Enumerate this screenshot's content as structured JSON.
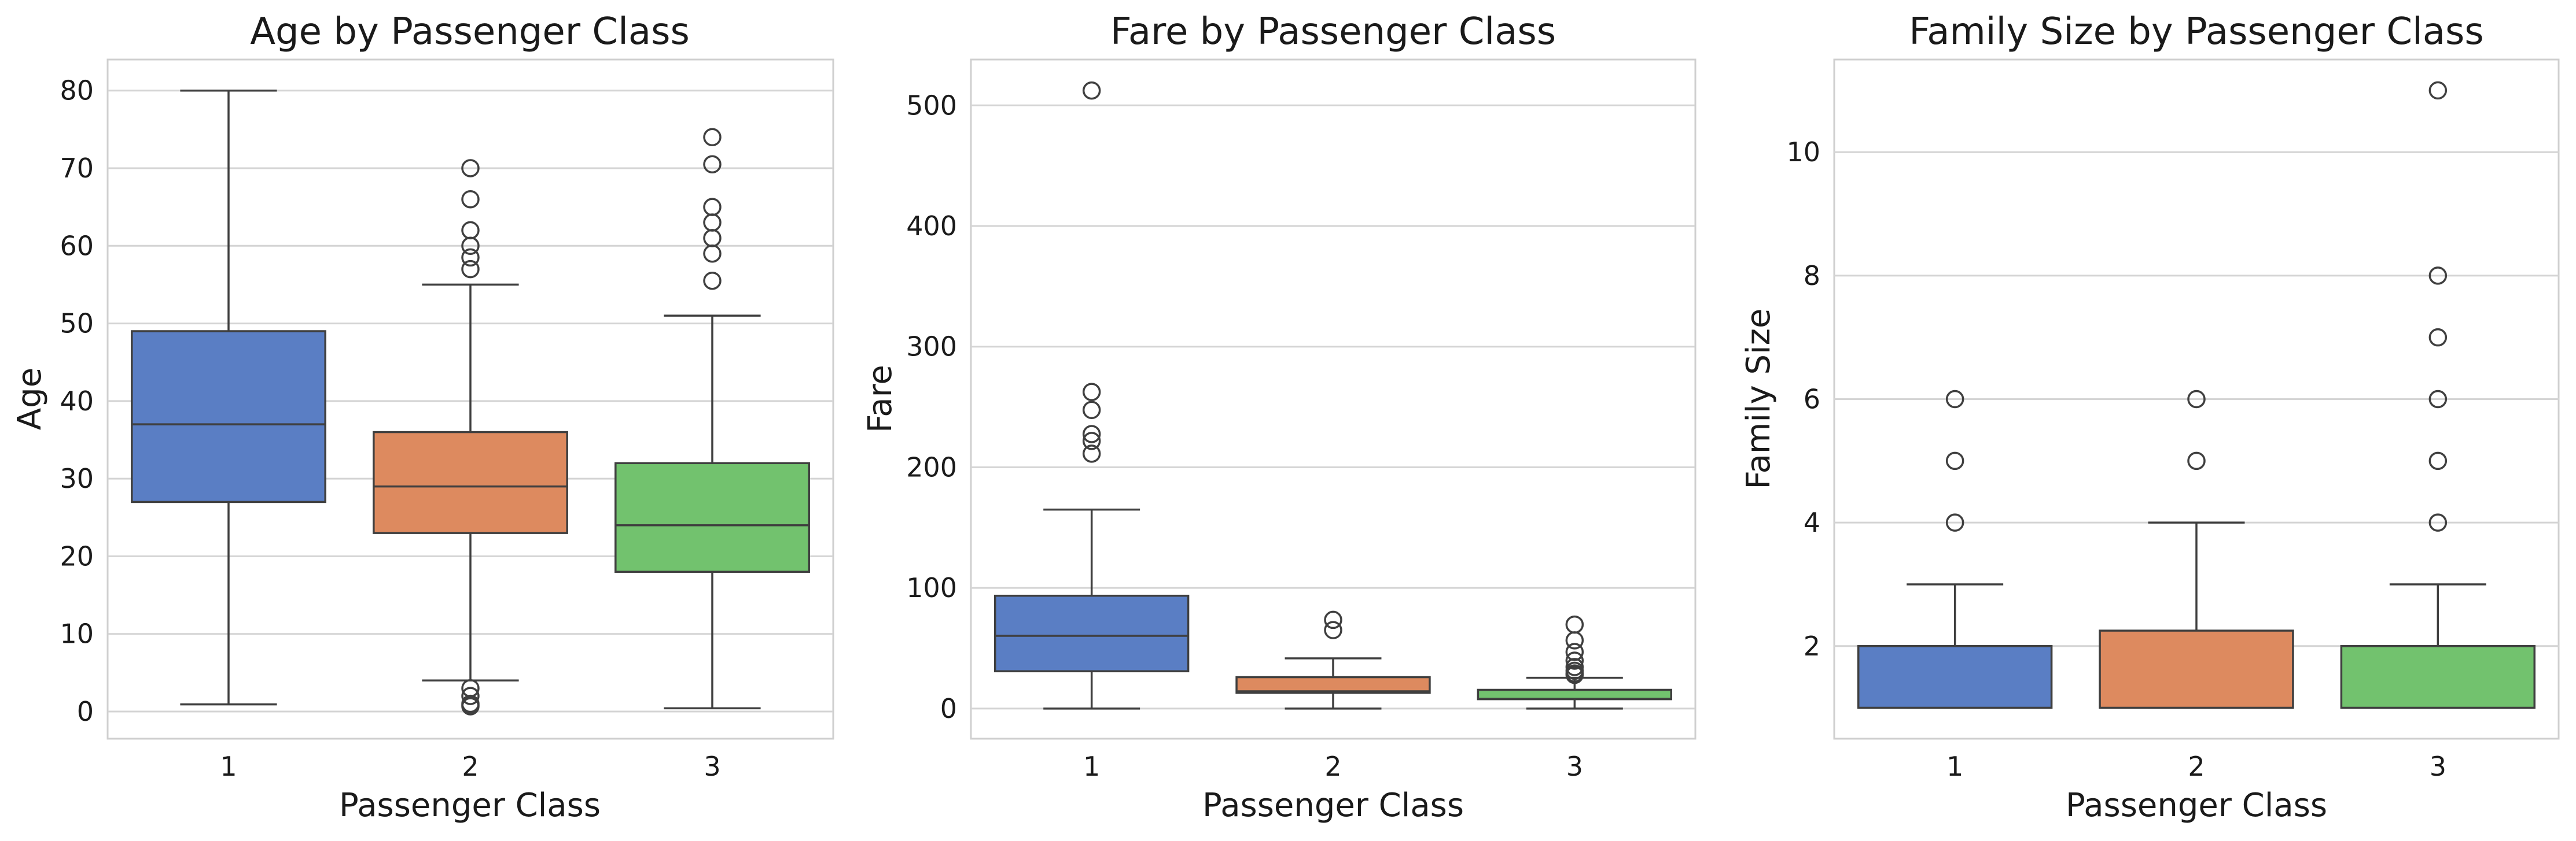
{
  "colors": {
    "class_1": "#5a7ec4",
    "class_2": "#dd8a5f",
    "class_3": "#72c26e"
  },
  "chart_data": [
    {
      "type": "box",
      "title": "Age by Passenger Class",
      "xlabel": "Passenger Class",
      "ylabel": "Age",
      "categories": [
        "1",
        "2",
        "3"
      ],
      "ylim": [
        -3.5,
        84
      ],
      "yticks": [
        0,
        10,
        20,
        30,
        40,
        50,
        60,
        70,
        80
      ],
      "grid": true,
      "boxes": [
        {
          "category": "1",
          "whislo": 0.92,
          "q1": 27,
          "med": 37,
          "q3": 49,
          "whishi": 80,
          "fliers": []
        },
        {
          "category": "2",
          "whislo": 4,
          "q1": 23,
          "med": 29,
          "q3": 36,
          "whishi": 55,
          "fliers": [
            0.67,
            0.83,
            1,
            2,
            3,
            57,
            58.5,
            60,
            62,
            66,
            70
          ]
        },
        {
          "category": "3",
          "whislo": 0.42,
          "q1": 18,
          "med": 24,
          "q3": 32,
          "whishi": 51,
          "fliers": [
            55.5,
            59,
            61,
            63,
            65,
            70.5,
            74
          ]
        }
      ]
    },
    {
      "type": "box",
      "title": "Fare by Passenger Class",
      "xlabel": "Passenger Class",
      "ylabel": "Fare",
      "categories": [
        "1",
        "2",
        "3"
      ],
      "ylim": [
        -25,
        538
      ],
      "yticks": [
        0,
        100,
        200,
        300,
        400,
        500
      ],
      "grid": true,
      "boxes": [
        {
          "category": "1",
          "whislo": 0,
          "q1": 30.9,
          "med": 60.3,
          "q3": 93.5,
          "whishi": 164.9,
          "fliers": [
            211.3,
            221.8,
            227.5,
            247.5,
            262.4,
            512.3
          ]
        },
        {
          "category": "2",
          "whislo": 0,
          "q1": 13,
          "med": 14.3,
          "q3": 26,
          "whishi": 41.6,
          "fliers": [
            65,
            73.5
          ]
        },
        {
          "category": "3",
          "whislo": 0,
          "q1": 7.75,
          "med": 8.05,
          "q3": 15.5,
          "whishi": 25.5,
          "fliers": [
            27.9,
            29.1,
            31.3,
            34.4,
            39.7,
            46.9,
            56.5,
            69.6
          ]
        }
      ]
    },
    {
      "type": "box",
      "title": "Family Size by Passenger Class",
      "xlabel": "Passenger Class",
      "ylabel": "Family Size",
      "categories": [
        "1",
        "2",
        "3"
      ],
      "ylim": [
        0.5,
        11.5
      ],
      "yticks": [
        2,
        4,
        6,
        8,
        10
      ],
      "grid": true,
      "boxes": [
        {
          "category": "1",
          "whislo": 1,
          "q1": 1,
          "med": 1,
          "q3": 2,
          "whishi": 3,
          "fliers": [
            4,
            5,
            6
          ]
        },
        {
          "category": "2",
          "whislo": 1,
          "q1": 1,
          "med": 1,
          "q3": 2.25,
          "whishi": 4,
          "fliers": [
            5,
            6
          ]
        },
        {
          "category": "3",
          "whislo": 1,
          "q1": 1,
          "med": 1,
          "q3": 2,
          "whishi": 3,
          "fliers": [
            4,
            5,
            6,
            7,
            8,
            11
          ]
        }
      ]
    }
  ]
}
